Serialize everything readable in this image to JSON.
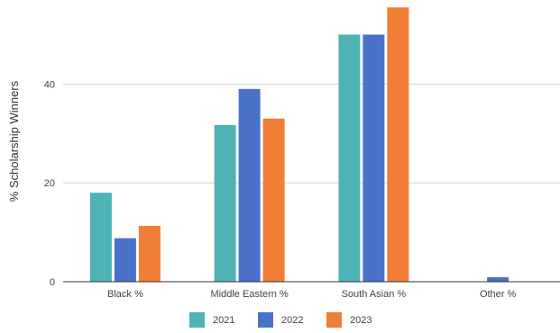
{
  "chart_data": {
    "type": "bar",
    "ylabel": "% Scholarship Winners",
    "xlabel": "",
    "ylim": [
      0,
      57
    ],
    "yticks": [
      0,
      20,
      40
    ],
    "grid": true,
    "legend_position": "bottom",
    "categories": [
      "Black %",
      "Middle Eastern %",
      "South Asian %",
      "Other %"
    ],
    "series": [
      {
        "name": "2021",
        "color": "#4fb3b5",
        "values": [
          18,
          31.7,
          50,
          0
        ]
      },
      {
        "name": "2022",
        "color": "#4a72c9",
        "values": [
          8.8,
          39,
          50,
          0.9
        ]
      },
      {
        "name": "2023",
        "color": "#f07f35",
        "values": [
          11.3,
          33,
          55.5,
          0
        ]
      }
    ]
  }
}
